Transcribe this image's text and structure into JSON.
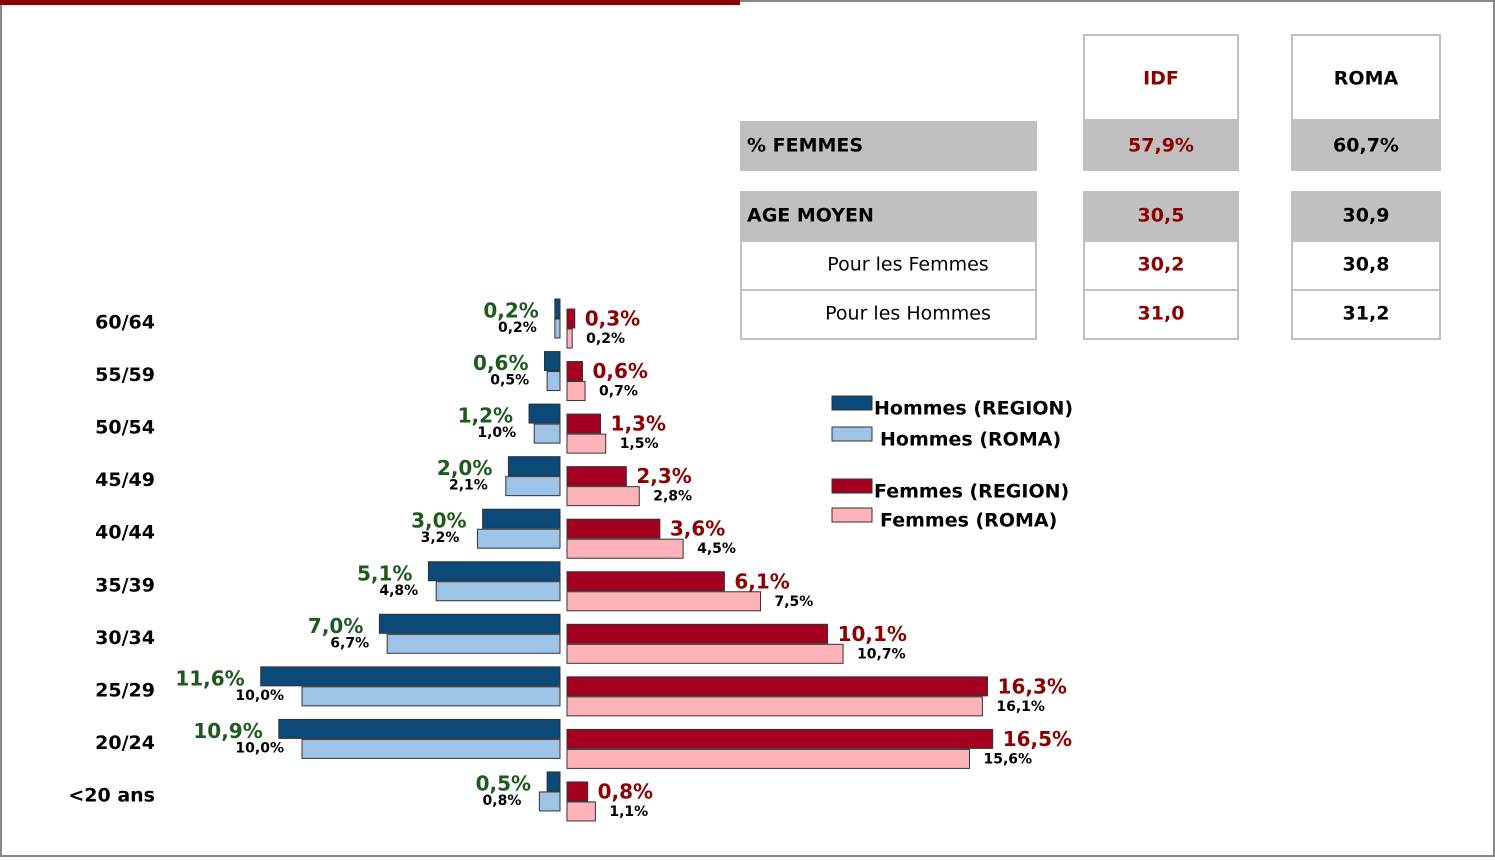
{
  "chart_data": {
    "type": "pyramid",
    "categories": [
      "60/64",
      "55/59",
      "50/54",
      "45/49",
      "40/44",
      "35/39",
      "30/34",
      "25/29",
      "20/24",
      "<20 ans"
    ],
    "series": [
      {
        "name": "Hommes (REGION)",
        "color": "#0b4a78",
        "values": [
          0.2,
          0.6,
          1.2,
          2.0,
          3.0,
          5.1,
          7.0,
          11.6,
          10.9,
          0.5
        ],
        "value_labels": [
          "0,2%",
          "0,6%",
          "1,2%",
          "2,0%",
          "3,0%",
          "5,1%",
          "7,0%",
          "11,6%",
          "10,9%",
          "0,5%"
        ]
      },
      {
        "name": "Hommes (ROMA)",
        "color": "#9dc3e6",
        "values": [
          0.2,
          0.5,
          1.0,
          2.1,
          3.2,
          4.8,
          6.7,
          10.0,
          10.0,
          0.8
        ],
        "value_labels": [
          "0,2%",
          "0,5%",
          "1,0%",
          "2,1%",
          "3,2%",
          "4,8%",
          "6,7%",
          "10,0%",
          "10,0%",
          "0,8%"
        ]
      },
      {
        "name": "Femmes (REGION)",
        "color": "#a50021",
        "values": [
          0.3,
          0.6,
          1.3,
          2.3,
          3.6,
          6.1,
          10.1,
          16.3,
          16.5,
          0.8
        ],
        "value_labels": [
          "0,3%",
          "0,6%",
          "1,3%",
          "2,3%",
          "3,6%",
          "6,1%",
          "10,1%",
          "16,3%",
          "16,5%",
          "0,8%"
        ]
      },
      {
        "name": "Femmes (ROMA)",
        "color": "#ffb3b8",
        "values": [
          0.2,
          0.7,
          1.5,
          2.8,
          4.5,
          7.5,
          10.7,
          16.1,
          15.6,
          1.1
        ],
        "value_labels": [
          "0,2%",
          "0,7%",
          "1,5%",
          "2,8%",
          "4,5%",
          "7,5%",
          "10,7%",
          "16,1%",
          "15,6%",
          "1,1%"
        ]
      }
    ]
  },
  "table": {
    "columns": [
      "IDF",
      "ROMA"
    ],
    "rows": [
      {
        "label": "% FEMMES",
        "values": [
          "57,9%",
          "60,7%"
        ]
      },
      {
        "label": "AGE MOYEN",
        "values": [
          "30,5",
          "30,9"
        ]
      },
      {
        "label": "Pour les Femmes",
        "values": [
          "30,2",
          "30,8"
        ]
      },
      {
        "label": "Pour les Hommes",
        "values": [
          "31,0",
          "31,2"
        ]
      }
    ]
  }
}
